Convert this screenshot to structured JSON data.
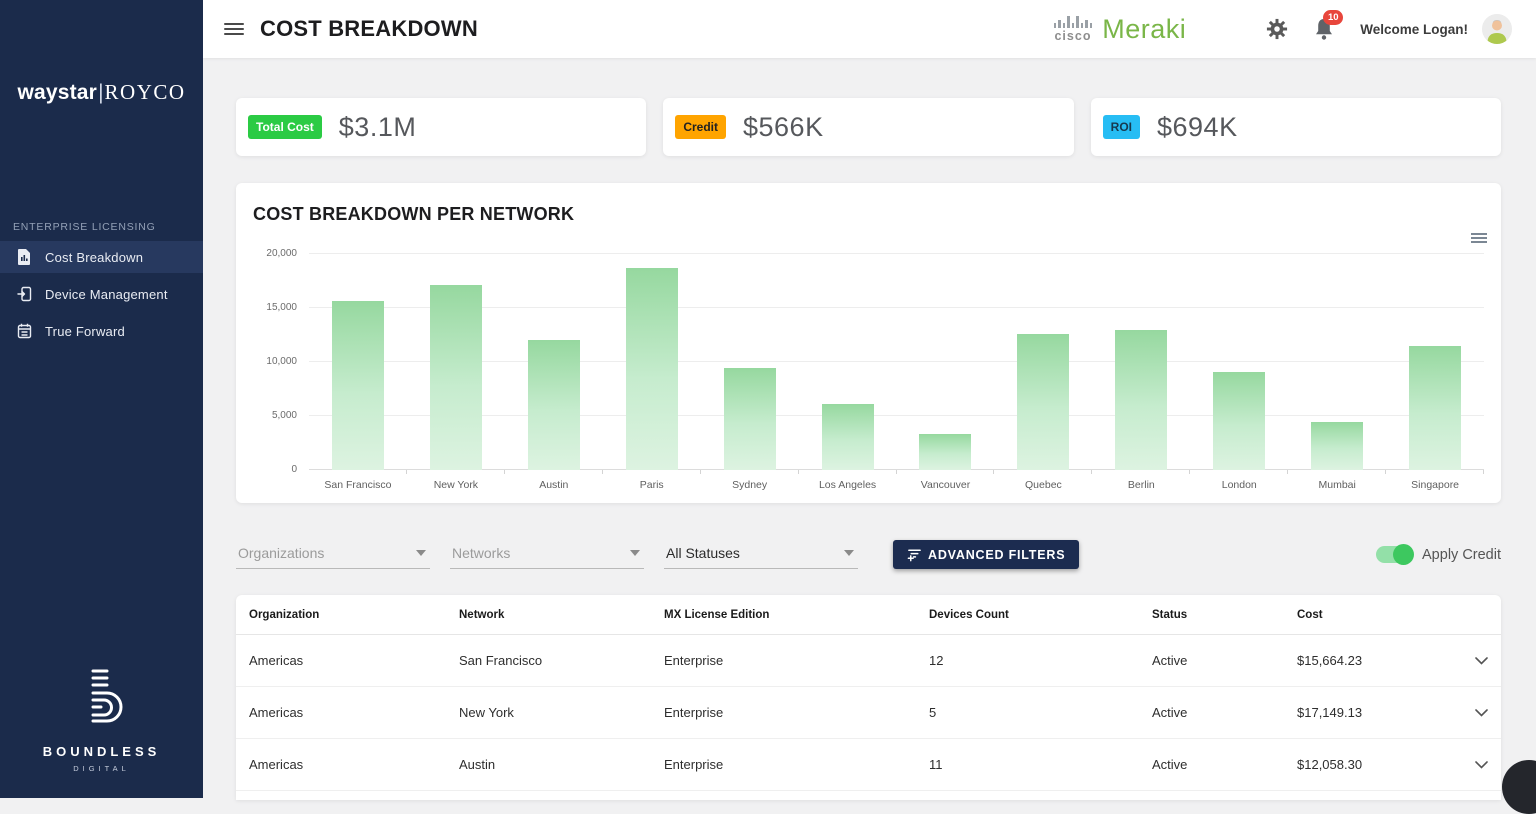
{
  "sidebar": {
    "logo": {
      "part1": "waystar",
      "divider": "|",
      "part2": "ROYCO"
    },
    "section_label": "ENTERPRISE LICENSING",
    "items": [
      {
        "label": "Cost Breakdown",
        "icon": "document-chart-icon",
        "active": true
      },
      {
        "label": "Device Management",
        "icon": "device-icon",
        "active": false
      },
      {
        "label": "True Forward",
        "icon": "calendar-icon",
        "active": false
      }
    ],
    "footer_logo": {
      "name": "BOUNDLESS",
      "sub": "DIGITAL"
    }
  },
  "header": {
    "title": "COST BREAKDOWN",
    "brand": {
      "cisco": "cisco",
      "meraki": "Meraki"
    },
    "notifications_count": "10",
    "welcome_text": "Welcome Logan!"
  },
  "cards": [
    {
      "badge": "Total Cost",
      "badge_color": "#2bcb44",
      "badge_text_color": "#ffffff",
      "value": "$3.1M"
    },
    {
      "badge": "Credit",
      "badge_color": "#ffa400",
      "badge_text_color": "#222222",
      "value": "$566K"
    },
    {
      "badge": "ROI",
      "badge_color": "#27bdf4",
      "badge_text_color": "#16394f",
      "value": "$694K"
    }
  ],
  "chart_data": {
    "type": "bar",
    "title": "COST BREAKDOWN PER NETWORK",
    "categories": [
      "San Francisco",
      "New York",
      "Austin",
      "Paris",
      "Sydney",
      "Los Angeles",
      "Vancouver",
      "Quebec",
      "Berlin",
      "London",
      "Mumbai",
      "Singapore"
    ],
    "values": [
      15664,
      17149,
      12058,
      18700,
      9400,
      6100,
      3300,
      12600,
      12950,
      9100,
      4400,
      11450
    ],
    "xlabel": "",
    "ylabel": "",
    "ylim": [
      0,
      20000
    ],
    "yticks": [
      0,
      5000,
      10000,
      15000,
      20000
    ],
    "ytick_labels": [
      "0",
      "5,000",
      "10,000",
      "15,000",
      "20,000"
    ],
    "grid": true,
    "legend": false,
    "bar_color_top": "#96d89f",
    "bar_color_bottom": "#ddf3e1"
  },
  "filters": {
    "organizations_placeholder": "Organizations",
    "networks_placeholder": "Networks",
    "statuses_value": "All Statuses",
    "advanced_button_label": "ADVANCED FILTERS",
    "apply_credit_label": "Apply Credit",
    "apply_credit_enabled": true
  },
  "table": {
    "columns": [
      "Organization",
      "Network",
      "MX License Edition",
      "Devices Count",
      "Status",
      "Cost"
    ],
    "rows": [
      {
        "organization": "Americas",
        "network": "San Francisco",
        "mx_license_edition": "Enterprise",
        "devices_count": "12",
        "status": "Active",
        "cost": "$15,664.23"
      },
      {
        "organization": "Americas",
        "network": "New York",
        "mx_license_edition": "Enterprise",
        "devices_count": "5",
        "status": "Active",
        "cost": "$17,149.13"
      },
      {
        "organization": "Americas",
        "network": "Austin",
        "mx_license_edition": "Enterprise",
        "devices_count": "11",
        "status": "Active",
        "cost": "$12,058.30"
      }
    ]
  }
}
